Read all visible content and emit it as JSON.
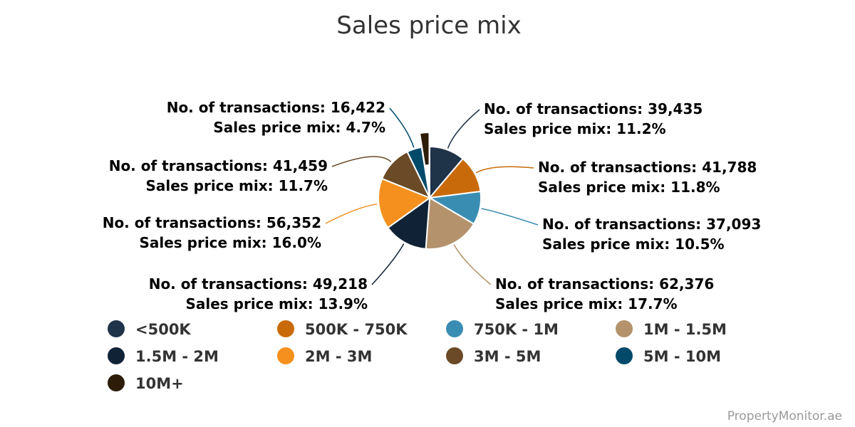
{
  "chart_data": {
    "type": "pie",
    "title": "Sales price mix",
    "label_prefix_count": "No. of transactions: ",
    "label_prefix_mix": "Sales price mix: ",
    "slices": [
      {
        "name": "<500K",
        "transactions": "39,435",
        "mix": "11.2%",
        "value": 11.2,
        "color": "#1f3349"
      },
      {
        "name": "500K - 750K",
        "transactions": "41,788",
        "mix": "11.8%",
        "value": 11.8,
        "color": "#c96a0a"
      },
      {
        "name": "750K - 1M",
        "transactions": "37,093",
        "mix": "10.5%",
        "value": 10.5,
        "color": "#3a8db2"
      },
      {
        "name": "1M - 1.5M",
        "transactions": "62,376",
        "mix": "17.7%",
        "value": 17.7,
        "color": "#b3926c"
      },
      {
        "name": "1.5M - 2M",
        "transactions": "49,218",
        "mix": "13.9%",
        "value": 13.9,
        "color": "#102235"
      },
      {
        "name": "2M - 3M",
        "transactions": "56,352",
        "mix": "16.0%",
        "value": 16.0,
        "color": "#f5901e"
      },
      {
        "name": "3M - 5M",
        "transactions": "41,459",
        "mix": "11.7%",
        "value": 11.7,
        "color": "#6b4a27"
      },
      {
        "name": "5M - 10M",
        "transactions": "16,422",
        "mix": "4.7%",
        "value": 4.7,
        "color": "#034a6a"
      },
      {
        "name": "10M+",
        "transactions": "",
        "mix": "",
        "value": 2.5,
        "color": "#2d1c08"
      }
    ],
    "legend_position": "bottom"
  },
  "credit": "PropertyMonitor.ae"
}
